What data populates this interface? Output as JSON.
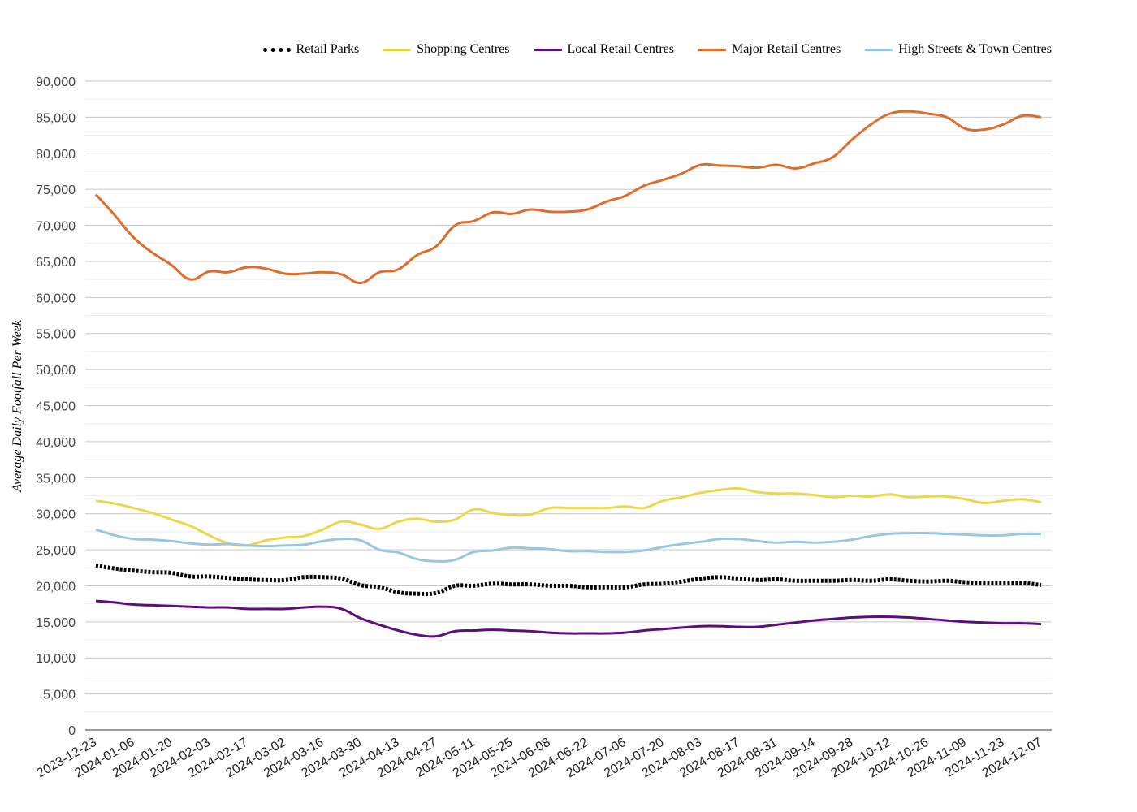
{
  "chart_data": {
    "type": "line",
    "title": "",
    "xlabel": "",
    "ylabel": "Average Daily Footfall Per Week",
    "ylim": [
      0,
      90000
    ],
    "y_ticks": [
      "0",
      "5,000",
      "10,000",
      "15,000",
      "20,000",
      "25,000",
      "30,000",
      "35,000",
      "40,000",
      "45,000",
      "50,000",
      "55,000",
      "60,000",
      "65,000",
      "70,000",
      "75,000",
      "80,000",
      "85,000",
      "90,000"
    ],
    "grid": true,
    "legend_position": "top-right",
    "x": [
      "2023-12-23",
      "2023-12-30",
      "2024-01-06",
      "2024-01-13",
      "2024-01-20",
      "2024-01-27",
      "2024-02-03",
      "2024-02-10",
      "2024-02-17",
      "2024-02-24",
      "2024-03-02",
      "2024-03-09",
      "2024-03-16",
      "2024-03-23",
      "2024-03-30",
      "2024-04-06",
      "2024-04-13",
      "2024-04-20",
      "2024-04-27",
      "2024-05-04",
      "2024-05-11",
      "2024-05-18",
      "2024-05-25",
      "2024-06-01",
      "2024-06-08",
      "2024-06-15",
      "2024-06-22",
      "2024-06-29",
      "2024-07-06",
      "2024-07-13",
      "2024-07-20",
      "2024-07-27",
      "2024-08-03",
      "2024-08-10",
      "2024-08-17",
      "2024-08-24",
      "2024-08-31",
      "2024-09-07",
      "2024-09-14",
      "2024-09-21",
      "2024-09-28",
      "2024-10-05",
      "2024-10-12",
      "2024-10-19",
      "2024-10-26",
      "2024-11-02",
      "2024-11-09",
      "2024-11-16",
      "2024-11-23",
      "2024-11-30",
      "2024-12-07"
    ],
    "x_tick_labels": [
      "2023-12-23",
      "2024-01-06",
      "2024-01-20",
      "2024-02-03",
      "2024-02-17",
      "2024-03-02",
      "2024-03-16",
      "2024-03-30",
      "2024-04-13",
      "2024-04-27",
      "2024-05-11",
      "2024-05-25",
      "2024-06-08",
      "2024-06-22",
      "2024-07-06",
      "2024-07-20",
      "2024-08-03",
      "2024-08-17",
      "2024-08-31",
      "2024-09-14",
      "2024-09-28",
      "2024-10-12",
      "2024-10-26",
      "2024-11-09",
      "2024-11-23",
      "2024-12-07"
    ],
    "series": [
      {
        "name": "Retail Parks",
        "color": "#000000",
        "dashed": true,
        "values": [
          22800,
          22400,
          22100,
          21900,
          21800,
          21300,
          21300,
          21100,
          20900,
          20800,
          20800,
          21200,
          21200,
          21000,
          20100,
          19800,
          19100,
          18900,
          19000,
          20000,
          20000,
          20300,
          20200,
          20200,
          20000,
          20000,
          19800,
          19800,
          19800,
          20200,
          20300,
          20600,
          21000,
          21200,
          21000,
          20800,
          20900,
          20700,
          20700,
          20700,
          20800,
          20700,
          20900,
          20700,
          20600,
          20700,
          20500,
          20400,
          20400,
          20400,
          20100
        ]
      },
      {
        "name": "Shopping Centres",
        "color": "#e8d84a",
        "dashed": false,
        "values": [
          31800,
          31400,
          30800,
          30100,
          29200,
          28300,
          27000,
          25900,
          25600,
          26300,
          26700,
          26900,
          27800,
          28900,
          28500,
          27900,
          28900,
          29300,
          28900,
          29200,
          30600,
          30100,
          29800,
          29900,
          30800,
          30800,
          30800,
          30800,
          31000,
          30800,
          31800,
          32300,
          32900,
          33300,
          33500,
          33000,
          32800,
          32800,
          32600,
          32300,
          32500,
          32400,
          32700,
          32300,
          32400,
          32400,
          32000,
          31500,
          31800,
          32000,
          31600
        ]
      },
      {
        "name": "Local Retail Centres",
        "color": "#5c0f7a",
        "dashed": false,
        "values": [
          17900,
          17700,
          17400,
          17300,
          17200,
          17100,
          17000,
          17000,
          16800,
          16800,
          16800,
          17000,
          17100,
          16800,
          15500,
          14600,
          13800,
          13200,
          13000,
          13700,
          13800,
          13900,
          13800,
          13700,
          13500,
          13400,
          13400,
          13400,
          13500,
          13800,
          14000,
          14200,
          14400,
          14400,
          14300,
          14300,
          14600,
          14900,
          15200,
          15400,
          15600,
          15700,
          15700,
          15600,
          15400,
          15200,
          15000,
          14900,
          14800,
          14800,
          14700
        ]
      },
      {
        "name": "Major Retail Centres",
        "color": "#e06c2c",
        "dashed": false,
        "values": [
          74300,
          71400,
          68300,
          66200,
          64500,
          62500,
          63600,
          63500,
          64200,
          64000,
          63300,
          63300,
          63500,
          63200,
          62000,
          63500,
          63900,
          65900,
          67100,
          70000,
          70600,
          71800,
          71600,
          72200,
          71900,
          71900,
          72200,
          73300,
          74100,
          75500,
          76300,
          77200,
          78400,
          78300,
          78200,
          78000,
          78400,
          77900,
          78600,
          79500,
          81900,
          84000,
          85500,
          85800,
          85500,
          85000,
          83400,
          83300,
          84000,
          85200,
          85000
        ]
      },
      {
        "name": "High Streets & Town Centres",
        "color": "#99c6e0",
        "dashed": false,
        "values": [
          27800,
          27000,
          26500,
          26400,
          26200,
          25900,
          25700,
          25800,
          25600,
          25500,
          25600,
          25700,
          26200,
          26500,
          26300,
          25000,
          24600,
          23700,
          23400,
          23600,
          24700,
          24900,
          25300,
          25200,
          25100,
          24800,
          24800,
          24700,
          24700,
          24900,
          25400,
          25800,
          26100,
          26500,
          26500,
          26200,
          26000,
          26100,
          26000,
          26100,
          26400,
          26900,
          27200,
          27300,
          27300,
          27200,
          27100,
          27000,
          27000,
          27200,
          27200
        ]
      }
    ]
  }
}
